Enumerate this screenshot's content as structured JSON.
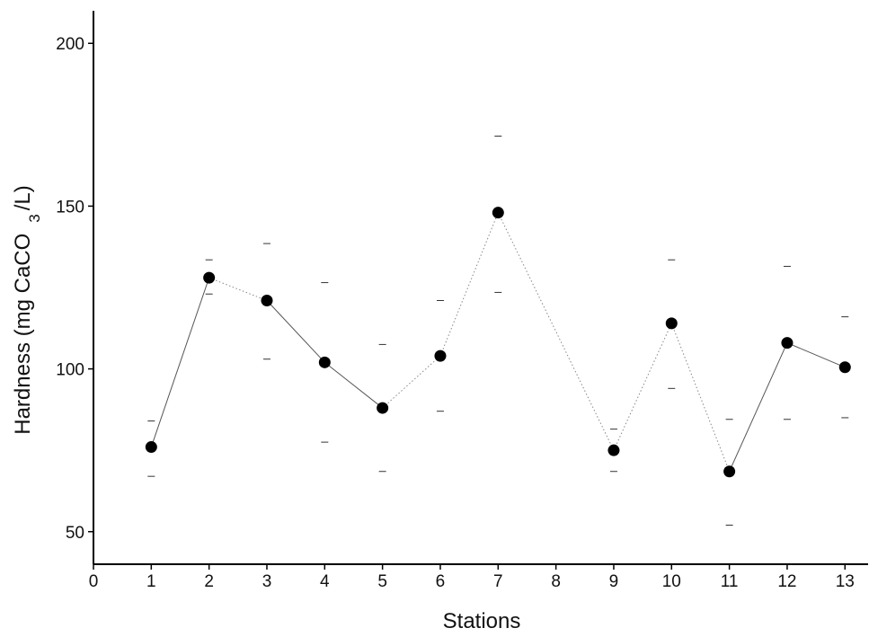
{
  "chart_data": {
    "type": "scatter",
    "title": "",
    "xlabel": "Stations",
    "ylabel": {
      "prefix": "Hardness (mg CaCO",
      "subscript": "3",
      "suffix": "/L)"
    },
    "xlim": [
      0,
      13.4
    ],
    "ylim": [
      40,
      210
    ],
    "x_ticks": [
      0,
      1,
      2,
      3,
      4,
      5,
      6,
      7,
      8,
      9,
      10,
      11,
      12,
      13
    ],
    "y_ticks": [
      50,
      100,
      150,
      200
    ],
    "grid": false,
    "series": [
      {
        "x": [
          1,
          2,
          3,
          4,
          5,
          6,
          7,
          9,
          10,
          11,
          12,
          13
        ],
        "y": [
          76,
          128,
          121,
          102,
          88,
          104,
          148,
          75,
          114,
          68.5,
          108,
          100.5
        ],
        "upper": [
          84,
          133.5,
          138.5,
          126.5,
          107.5,
          121,
          171.5,
          81.5,
          133.5,
          84.5,
          131.5,
          116
        ],
        "lower": [
          67,
          123,
          103,
          77.5,
          68.5,
          87,
          123.5,
          68.5,
          94,
          52,
          84.5,
          85
        ]
      }
    ],
    "connectors": [
      {
        "from": 1,
        "to": 2,
        "style": "solid"
      },
      {
        "from": 2,
        "to": 3,
        "style": "dotted"
      },
      {
        "from": 3,
        "to": 4,
        "style": "solid"
      },
      {
        "from": 4,
        "to": 5,
        "style": "solid"
      },
      {
        "from": 5,
        "to": 6,
        "style": "dotted"
      },
      {
        "from": 6,
        "to": 7,
        "style": "dotted"
      },
      {
        "from": 7,
        "to": 8,
        "style": "dotted"
      },
      {
        "from": 8,
        "to": 9,
        "style": "dotted"
      },
      {
        "from": 9,
        "to": 10,
        "style": "dotted"
      },
      {
        "from": 10,
        "to": 11,
        "style": "solid"
      },
      {
        "from": 11,
        "to": 12,
        "style": "solid"
      }
    ],
    "colors": {
      "marker": "#000000",
      "axis": "#000000",
      "line": "#555555",
      "error": "#333333"
    }
  }
}
